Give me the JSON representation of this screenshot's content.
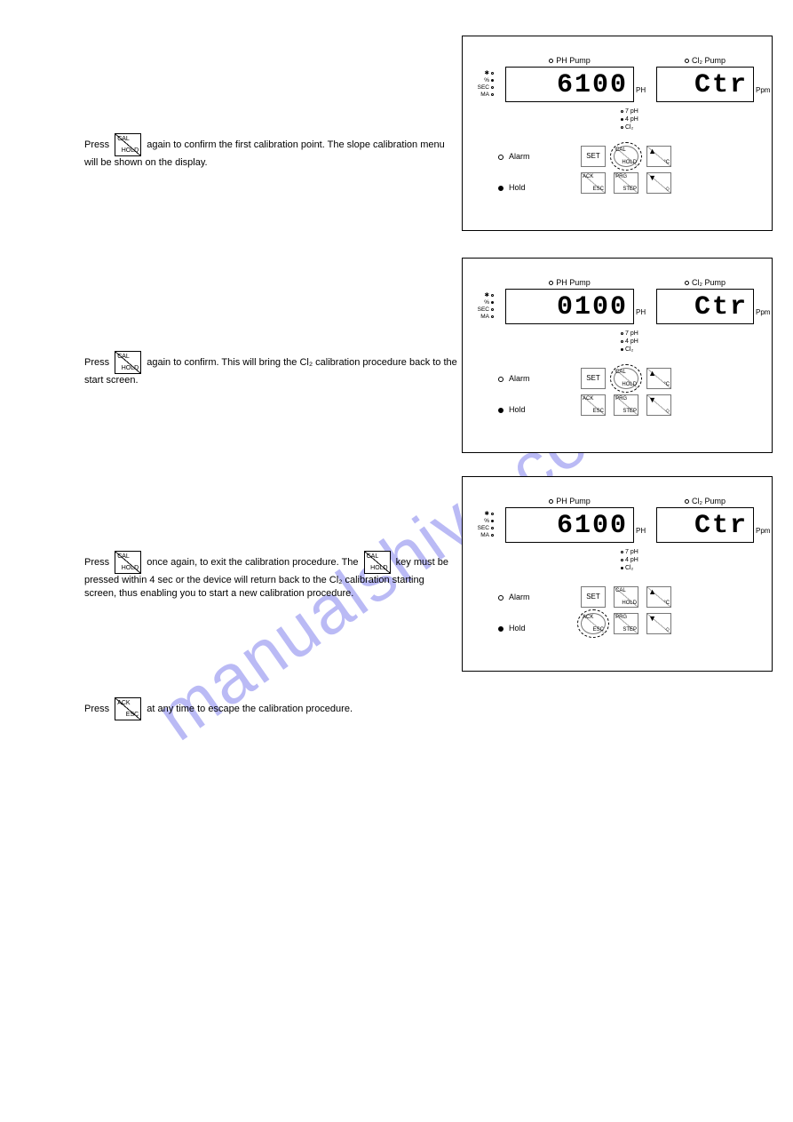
{
  "watermark": "manualshive.com",
  "buttons": {
    "calhold": {
      "top": "CAL",
      "bot": "HOLD"
    },
    "ackesc": {
      "top": "ACK",
      "bot": "ESC"
    },
    "set": {
      "label": "SET"
    },
    "prgstep": {
      "top": "PRG",
      "bot": "STEP"
    },
    "up": {
      "glyph": "▲",
      "sub": "°C"
    },
    "down": {
      "glyph": "▼",
      "sub": "◇"
    }
  },
  "instr1": {
    "pre": "Press ",
    "post": " again to confirm the first calibration point. The slope calibration menu will be shown on the display."
  },
  "instr2": {
    "pre": "Press ",
    "post": " again to confirm. This will bring the Cl₂ calibration procedure back to the start screen."
  },
  "instr3": {
    "pre": "Press ",
    "mid": " once again, to exit the calibration procedure. The ",
    "post": " key must be pressed within 4 sec or the device will return back to the Cl₂ calibration starting screen, thus enabling you to start a new calibration procedure."
  },
  "note": {
    "pre": "Press ",
    "post": " at any time to escape the calibration procedure."
  },
  "panel": {
    "ph_label_led": "○",
    "ph_label": "PH Pump",
    "cl_label_led": "○",
    "cl_label": "Cl₂ Pump",
    "unit_ph": "PH",
    "unit_ppm": "Ppm",
    "stat_rows": [
      "✱",
      "%",
      "SEC",
      "MA"
    ],
    "tri": {
      "r1": "7 pH",
      "r2": "4 pH",
      "r3": "Cl₂"
    },
    "alarm": "Alarm",
    "hold": "Hold"
  },
  "panels": [
    {
      "lcd_ph": "6100",
      "lcd_cl": "Ctr",
      "stat_filled": [
        false,
        true,
        false,
        false
      ],
      "tri_filled": [
        false,
        true,
        false
      ],
      "hold_filled": true,
      "highlight": "calhold"
    },
    {
      "lcd_ph": "0100",
      "lcd_cl": "Ctr",
      "stat_filled": [
        false,
        true,
        false,
        false
      ],
      "tri_filled": [
        false,
        false,
        true
      ],
      "hold_filled": true,
      "highlight": "calhold"
    },
    {
      "lcd_ph": "6100",
      "lcd_cl": "Ctr",
      "stat_filled": [
        false,
        true,
        false,
        false
      ],
      "tri_filled": [
        false,
        false,
        true
      ],
      "hold_filled": true,
      "highlight": "ackesc"
    }
  ]
}
